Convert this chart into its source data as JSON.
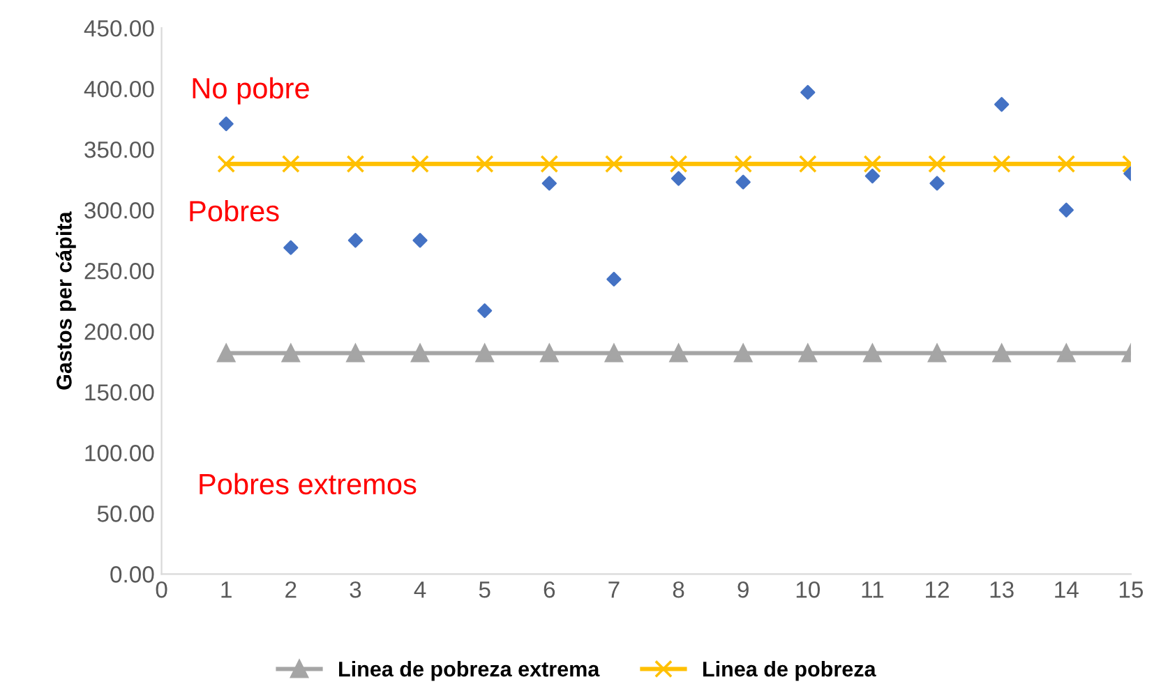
{
  "chart_data": {
    "type": "scatter",
    "ylabel": "Gastos per cápita",
    "x": [
      1,
      2,
      3,
      4,
      5,
      6,
      7,
      8,
      9,
      10,
      11,
      12,
      13,
      14,
      15
    ],
    "series": [
      {
        "color": "#4472c4",
        "marker": "diamond",
        "values": [
          371,
          269,
          275,
          275,
          217,
          322,
          243,
          326,
          323,
          397,
          328,
          322,
          387,
          300,
          330
        ]
      },
      {
        "type": "line",
        "name": "Linea de pobreza extrema",
        "color": "#a5a5a5",
        "marker": "triangle",
        "values": [
          182,
          182,
          182,
          182,
          182,
          182,
          182,
          182,
          182,
          182,
          182,
          182,
          182,
          182,
          182
        ]
      },
      {
        "type": "line",
        "name": "Linea de pobreza",
        "color": "#ffc000",
        "marker": "cross",
        "values": [
          338,
          338,
          338,
          338,
          338,
          338,
          338,
          338,
          338,
          338,
          338,
          338,
          338,
          338,
          338
        ]
      }
    ],
    "xlim": [
      0,
      15
    ],
    "xticks": [
      0,
      1,
      2,
      3,
      4,
      5,
      6,
      7,
      8,
      9,
      10,
      11,
      12,
      13,
      14,
      15
    ],
    "ylim": [
      0,
      450
    ],
    "yticks": [
      {
        "value": 0,
        "label": "0.00"
      },
      {
        "value": 50,
        "label": "50.00"
      },
      {
        "value": 100,
        "label": "100.00"
      },
      {
        "value": 150,
        "label": "150.00"
      },
      {
        "value": 200,
        "label": "200.00"
      },
      {
        "value": 250,
        "label": "250.00"
      },
      {
        "value": 300,
        "label": "300.00"
      },
      {
        "value": 350,
        "label": "350.00"
      },
      {
        "value": 400,
        "label": "400.00"
      },
      {
        "value": 450,
        "label": "450.00"
      }
    ],
    "annotations": [
      "No pobre",
      "Pobres",
      "Pobres extremos"
    ],
    "grid": false,
    "legend": "bottom"
  }
}
